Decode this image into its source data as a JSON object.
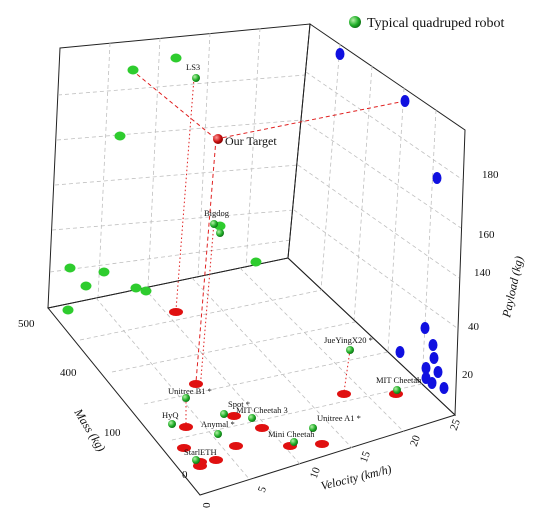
{
  "chart_data": {
    "type": "scatter",
    "axes": {
      "x": {
        "label": "Velocity (km/h)",
        "ticks": [
          "0",
          "5",
          "10",
          "15",
          "20",
          "25"
        ]
      },
      "y": {
        "label": "Mass (kg)",
        "ticks": [
          "0",
          "100",
          "400",
          "500"
        ]
      },
      "z": {
        "label": "Payload (kg)",
        "ticks": [
          "20",
          "40",
          "140",
          "160",
          "180"
        ]
      }
    },
    "legend": {
      "label": "Typical quadruped robot",
      "position": "top-right"
    },
    "colors": {
      "robot": "#22b02a",
      "shadow_mass_payload": "#2ecc2e",
      "shadow_velocity_payload": "#1010e0",
      "shadow_floor": "#e01010",
      "target": "#c81010",
      "guide": "#e02020"
    },
    "target": {
      "label": "Our Target"
    },
    "robots": [
      {
        "label": "LS3"
      },
      {
        "label": "Bigdog"
      },
      {
        "label": "JueYingX20 *"
      },
      {
        "label": "MIT Cheetah"
      },
      {
        "label": "Unitree B1 *"
      },
      {
        "label": "Spot *"
      },
      {
        "label": "MIT Cheetah 3"
      },
      {
        "label": "Unitree A1 *"
      },
      {
        "label": "HyQ"
      },
      {
        "label": "Anymal *"
      },
      {
        "label": "Mini Cheetah"
      },
      {
        "label": "StarlETH"
      }
    ]
  }
}
